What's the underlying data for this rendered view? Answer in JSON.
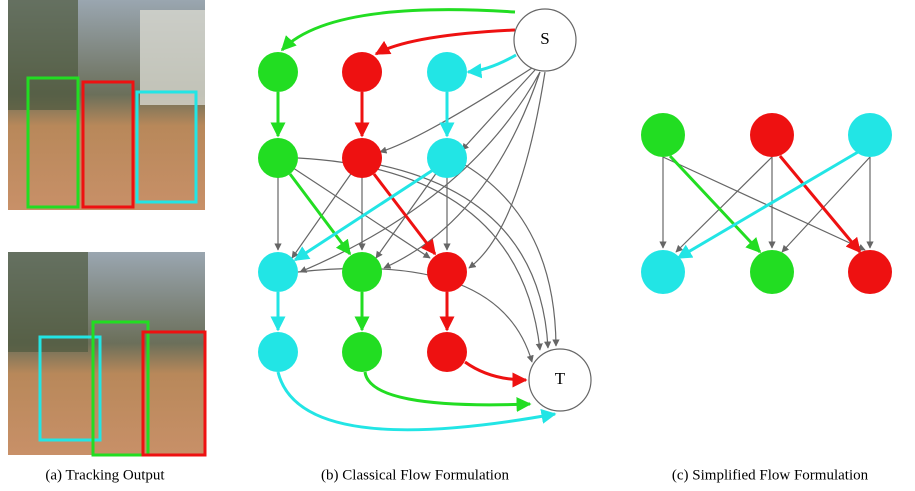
{
  "panels": [
    {
      "caption": "(a) Tracking Output"
    },
    {
      "caption": "(b) Classical Flow Formulation",
      "nodes": [
        {
          "label": "S"
        },
        {
          "label": "T"
        }
      ]
    },
    {
      "caption": "(c) Simplified Flow Formulation"
    }
  ]
}
